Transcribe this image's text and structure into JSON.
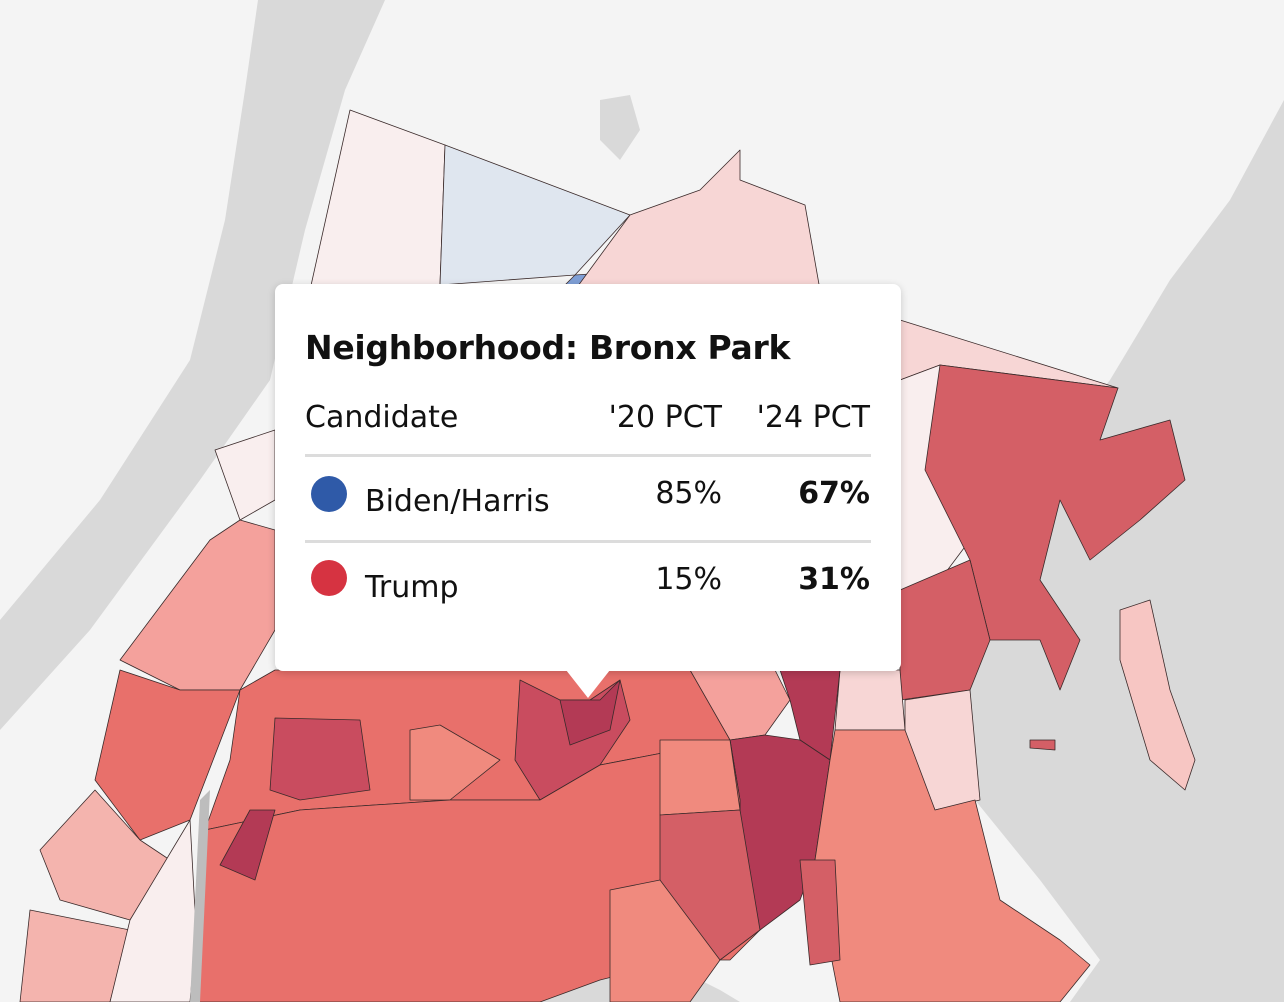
{
  "tooltip": {
    "title": "Neighborhood: Bronx Park",
    "columns": [
      "Candidate",
      "'20 PCT",
      "'24 PCT"
    ],
    "rows": [
      {
        "candidate": "Biden/Harris",
        "color": "#2f5aa8",
        "pct_2020": "85%",
        "pct_2024": "67%"
      },
      {
        "candidate": "Trump",
        "color": "#d63341",
        "pct_2020": "15%",
        "pct_2024": "31%"
      }
    ]
  }
}
